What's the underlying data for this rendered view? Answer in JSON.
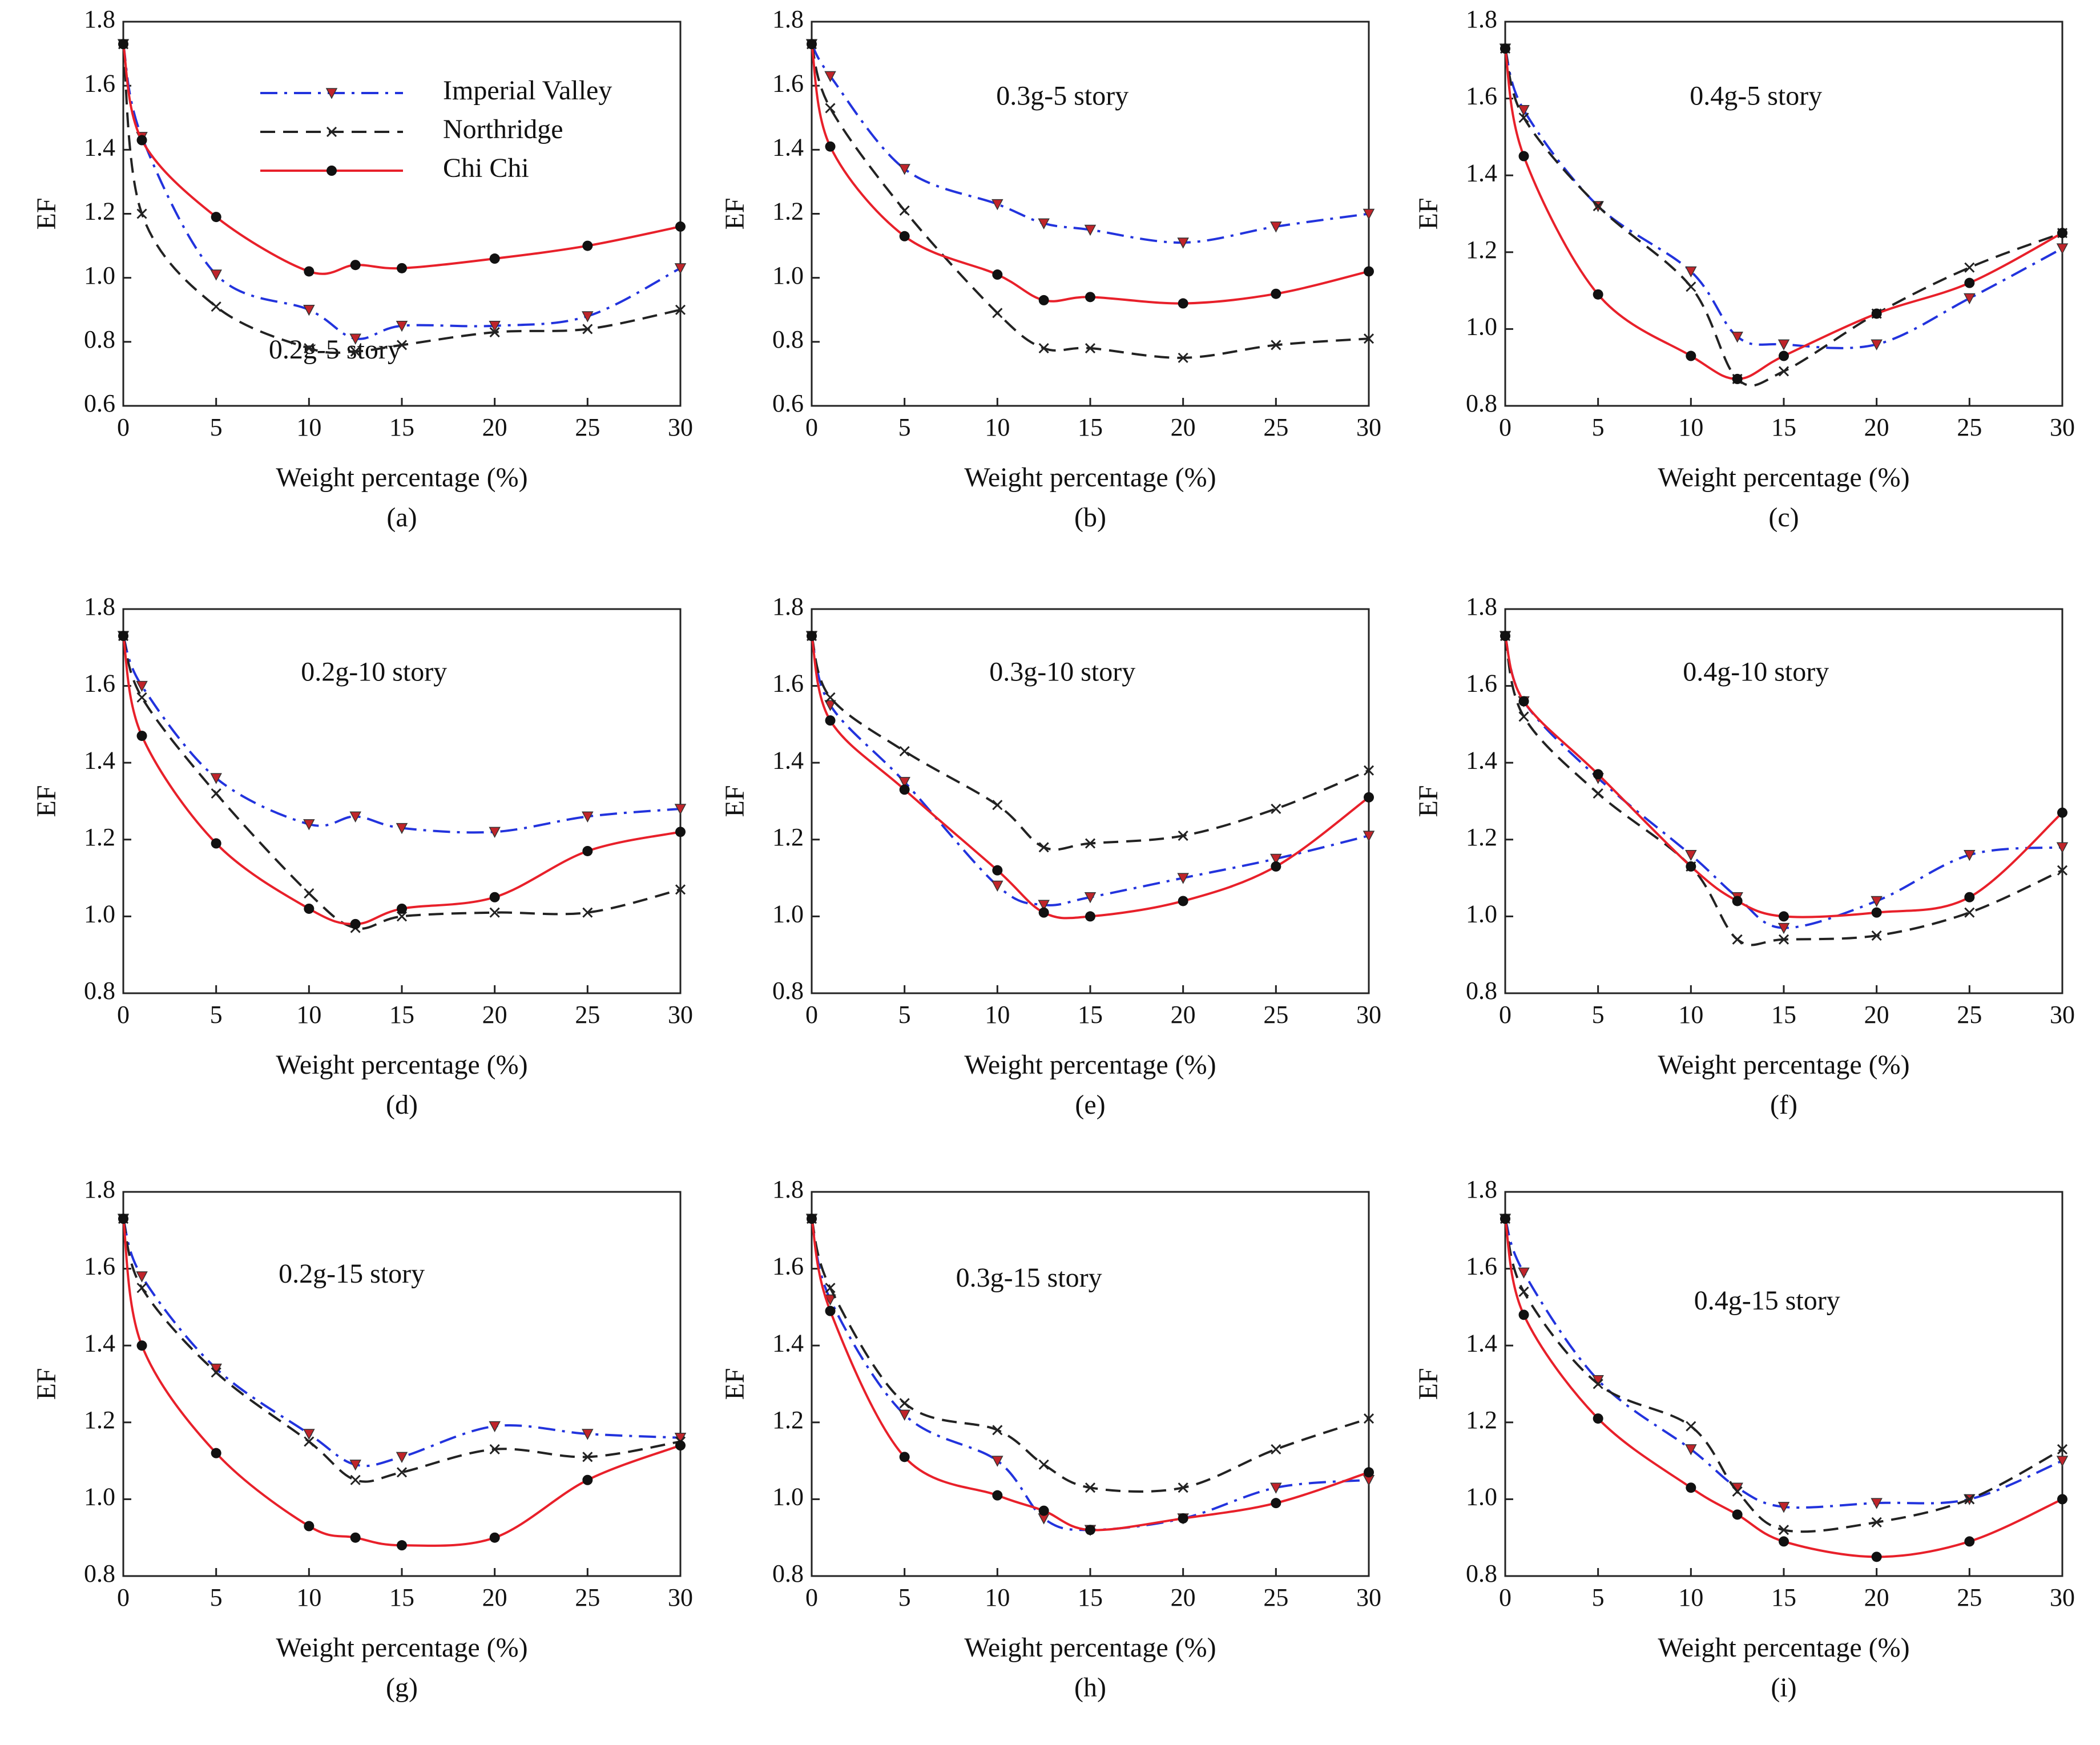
{
  "chart_data": [
    {
      "type": "line",
      "title": "0.2g-5 story",
      "caption": "(a)",
      "xlabel": "Weight percentage (%)",
      "ylabel": "EF",
      "x": [
        0,
        1,
        5,
        10,
        12.5,
        15,
        20,
        25,
        30
      ],
      "xlim": [
        0,
        30
      ],
      "xticks": [
        0,
        5,
        10,
        15,
        20,
        25,
        30
      ],
      "ylim": [
        0.6,
        1.8
      ],
      "yticks": [
        0.6,
        0.8,
        {
          "value": 1,
          "label": "1.0"
        },
        1.2,
        1.4,
        1.6,
        1.8
      ],
      "legend": "upper left",
      "series": [
        {
          "name": "Imperial Valley",
          "color": "#2233dd",
          "dash": "dash-dot",
          "marker": "triangle-down",
          "values": [
            1.73,
            1.44,
            1.01,
            0.9,
            0.81,
            0.85,
            0.85,
            0.88,
            1.03
          ]
        },
        {
          "name": "Northridge",
          "color": "#222222",
          "dash": "dashed",
          "marker": "x",
          "values": [
            1.73,
            1.2,
            0.91,
            0.78,
            0.77,
            0.79,
            0.83,
            0.84,
            0.9
          ]
        },
        {
          "name": "Chi Chi",
          "color": "#e8202a",
          "dash": "solid",
          "marker": "circle",
          "values": [
            1.73,
            1.43,
            1.19,
            1.02,
            1.04,
            1.03,
            1.06,
            1.1,
            1.16
          ]
        }
      ]
    },
    {
      "type": "line",
      "title": "0.3g-5 story",
      "caption": "(b)",
      "xlabel": "Weight percentage (%)",
      "ylabel": "EF",
      "x": [
        0,
        1,
        5,
        10,
        12.5,
        15,
        20,
        25,
        30
      ],
      "xlim": [
        0,
        30
      ],
      "xticks": [
        0,
        5,
        10,
        15,
        20,
        25,
        30
      ],
      "ylim": [
        0.6,
        1.8
      ],
      "yticks": [
        0.6,
        0.8,
        {
          "value": 1,
          "label": "1.0"
        },
        1.2,
        1.4,
        1.6,
        1.8
      ],
      "series": [
        {
          "color": "#2233dd",
          "dash": "dash-dot",
          "marker": "triangle-down",
          "values": [
            1.73,
            1.63,
            1.34,
            1.23,
            1.17,
            1.15,
            1.11,
            1.16,
            1.2
          ]
        },
        {
          "color": "#222222",
          "dash": "dashed",
          "marker": "x",
          "values": [
            1.73,
            1.53,
            1.21,
            0.89,
            0.78,
            0.78,
            0.75,
            0.79,
            0.81
          ]
        },
        {
          "color": "#e8202a",
          "dash": "solid",
          "marker": "circle",
          "values": [
            1.73,
            1.41,
            1.13,
            1.01,
            0.93,
            0.94,
            0.92,
            0.95,
            1.02
          ]
        }
      ]
    },
    {
      "type": "line",
      "title": "0.4g-5 story",
      "caption": "(c)",
      "xlabel": "Weight percentage (%)",
      "ylabel": "EF",
      "x": [
        0,
        1,
        5,
        10,
        12.5,
        15,
        20,
        25,
        30
      ],
      "xlim": [
        0,
        30
      ],
      "xticks": [
        0,
        5,
        10,
        15,
        20,
        25,
        30
      ],
      "ylim": [
        0.8,
        1.8
      ],
      "yticks": [
        0.8,
        {
          "value": 1,
          "label": "1.0"
        },
        1.2,
        1.4,
        1.6,
        1.8
      ],
      "series": [
        {
          "color": "#2233dd",
          "dash": "dash-dot",
          "marker": "triangle-down",
          "values": [
            1.73,
            1.57,
            1.32,
            1.15,
            0.98,
            0.96,
            0.96,
            1.08,
            1.21
          ]
        },
        {
          "color": "#222222",
          "dash": "dashed",
          "marker": "x",
          "values": [
            1.73,
            1.55,
            1.32,
            1.11,
            0.87,
            0.89,
            1.04,
            1.16,
            1.25
          ]
        },
        {
          "color": "#e8202a",
          "dash": "solid",
          "marker": "circle",
          "values": [
            1.73,
            1.45,
            1.09,
            0.93,
            0.87,
            0.93,
            1.04,
            1.12,
            1.25
          ]
        }
      ]
    },
    {
      "type": "line",
      "title": "0.2g-10 story",
      "caption": "(d)",
      "xlabel": "Weight percentage (%)",
      "ylabel": "EF",
      "x": [
        0,
        1,
        5,
        10,
        12.5,
        15,
        20,
        25,
        30
      ],
      "xlim": [
        0,
        30
      ],
      "xticks": [
        0,
        5,
        10,
        15,
        20,
        25,
        30
      ],
      "ylim": [
        0.8,
        1.8
      ],
      "yticks": [
        0.8,
        {
          "value": 1,
          "label": "1.0"
        },
        1.2,
        1.4,
        1.6,
        1.8
      ],
      "series": [
        {
          "color": "#2233dd",
          "dash": "dash-dot",
          "marker": "triangle-down",
          "values": [
            1.73,
            1.6,
            1.36,
            1.24,
            1.26,
            1.23,
            1.22,
            1.26,
            1.28
          ]
        },
        {
          "color": "#222222",
          "dash": "dashed",
          "marker": "x",
          "values": [
            1.73,
            1.57,
            1.32,
            1.06,
            0.97,
            1.0,
            1.01,
            1.01,
            1.07
          ]
        },
        {
          "color": "#e8202a",
          "dash": "solid",
          "marker": "circle",
          "values": [
            1.73,
            1.47,
            1.19,
            1.02,
            0.98,
            1.02,
            1.05,
            1.17,
            1.22
          ]
        }
      ]
    },
    {
      "type": "line",
      "title": "0.3g-10 story",
      "caption": "(e)",
      "xlabel": "Weight percentage (%)",
      "ylabel": "EF",
      "x": [
        0,
        1,
        5,
        10,
        12.5,
        15,
        20,
        25,
        30
      ],
      "xlim": [
        0,
        30
      ],
      "xticks": [
        0,
        5,
        10,
        15,
        20,
        25,
        30
      ],
      "ylim": [
        0.8,
        1.8
      ],
      "yticks": [
        0.8,
        {
          "value": 1,
          "label": "1.0"
        },
        1.2,
        1.4,
        1.6,
        1.8
      ],
      "series": [
        {
          "color": "#2233dd",
          "dash": "dash-dot",
          "marker": "triangle-down",
          "values": [
            1.73,
            1.55,
            1.35,
            1.08,
            1.03,
            1.05,
            1.1,
            1.15,
            1.21
          ]
        },
        {
          "color": "#222222",
          "dash": "dashed",
          "marker": "x",
          "values": [
            1.73,
            1.57,
            1.43,
            1.29,
            1.18,
            1.19,
            1.21,
            1.28,
            1.38
          ]
        },
        {
          "color": "#e8202a",
          "dash": "solid",
          "marker": "circle",
          "values": [
            1.73,
            1.51,
            1.33,
            1.12,
            1.01,
            1.0,
            1.04,
            1.13,
            1.31
          ]
        }
      ]
    },
    {
      "type": "line",
      "title": "0.4g-10 story",
      "caption": "(f)",
      "xlabel": "Weight percentage (%)",
      "ylabel": "EF",
      "x": [
        0,
        1,
        5,
        10,
        12.5,
        15,
        20,
        25,
        30
      ],
      "xlim": [
        0,
        30
      ],
      "xticks": [
        0,
        5,
        10,
        15,
        20,
        25,
        30
      ],
      "ylim": [
        0.8,
        1.8
      ],
      "yticks": [
        0.8,
        {
          "value": 1,
          "label": "1.0"
        },
        1.2,
        1.4,
        1.6,
        1.8
      ],
      "series": [
        {
          "color": "#2233dd",
          "dash": "dash-dot",
          "marker": "triangle-down",
          "values": [
            1.73,
            1.56,
            1.36,
            1.16,
            1.05,
            0.97,
            1.04,
            1.16,
            1.18
          ]
        },
        {
          "color": "#222222",
          "dash": "dashed",
          "marker": "x",
          "values": [
            1.73,
            1.52,
            1.32,
            1.13,
            0.94,
            0.94,
            0.95,
            1.01,
            1.12
          ]
        },
        {
          "color": "#e8202a",
          "dash": "solid",
          "marker": "circle",
          "values": [
            1.73,
            1.56,
            1.37,
            1.13,
            1.04,
            1.0,
            1.01,
            1.05,
            1.27
          ]
        }
      ]
    },
    {
      "type": "line",
      "title": "0.2g-15 story",
      "caption": "(g)",
      "xlabel": "Weight percentage (%)",
      "ylabel": "EF",
      "x": [
        0,
        1,
        5,
        10,
        12.5,
        15,
        20,
        25,
        30
      ],
      "xlim": [
        0,
        30
      ],
      "xticks": [
        0,
        5,
        10,
        15,
        20,
        25,
        30
      ],
      "ylim": [
        0.8,
        1.8
      ],
      "yticks": [
        0.8,
        {
          "value": 1,
          "label": "1.0"
        },
        1.2,
        1.4,
        1.6,
        1.8
      ],
      "series": [
        {
          "color": "#2233dd",
          "dash": "dash-dot",
          "marker": "triangle-down",
          "values": [
            1.73,
            1.58,
            1.34,
            1.17,
            1.09,
            1.11,
            1.19,
            1.17,
            1.16
          ]
        },
        {
          "color": "#222222",
          "dash": "dashed",
          "marker": "x",
          "values": [
            1.73,
            1.55,
            1.33,
            1.15,
            1.05,
            1.07,
            1.13,
            1.11,
            1.15
          ]
        },
        {
          "color": "#e8202a",
          "dash": "solid",
          "marker": "circle",
          "values": [
            1.73,
            1.4,
            1.12,
            0.93,
            0.9,
            0.88,
            0.9,
            1.05,
            1.14
          ]
        }
      ]
    },
    {
      "type": "line",
      "title": "0.3g-15 story",
      "caption": "(h)",
      "xlabel": "Weight percentage (%)",
      "ylabel": "EF",
      "x": [
        0,
        1,
        5,
        10,
        12.5,
        15,
        20,
        25,
        30
      ],
      "xlim": [
        0,
        30
      ],
      "xticks": [
        0,
        5,
        10,
        15,
        20,
        25,
        30
      ],
      "ylim": [
        0.8,
        1.8
      ],
      "yticks": [
        0.8,
        {
          "value": 1,
          "label": "1.0"
        },
        1.2,
        1.4,
        1.6,
        1.8
      ],
      "series": [
        {
          "color": "#2233dd",
          "dash": "dash-dot",
          "marker": "triangle-down",
          "values": [
            1.73,
            1.52,
            1.22,
            1.1,
            0.95,
            0.92,
            0.95,
            1.03,
            1.05
          ]
        },
        {
          "color": "#222222",
          "dash": "dashed",
          "marker": "x",
          "values": [
            1.73,
            1.55,
            1.25,
            1.18,
            1.09,
            1.03,
            1.03,
            1.13,
            1.21
          ]
        },
        {
          "color": "#e8202a",
          "dash": "solid",
          "marker": "circle",
          "values": [
            1.73,
            1.49,
            1.11,
            1.01,
            0.97,
            0.92,
            0.95,
            0.99,
            1.07
          ]
        }
      ]
    },
    {
      "type": "line",
      "title": "0.4g-15 story",
      "caption": "(i)",
      "xlabel": "Weight percentage (%)",
      "ylabel": "EF",
      "x": [
        0,
        1,
        5,
        10,
        12.5,
        15,
        20,
        25,
        30
      ],
      "xlim": [
        0,
        30
      ],
      "xticks": [
        0,
        5,
        10,
        15,
        20,
        25,
        30
      ],
      "ylim": [
        0.8,
        1.8
      ],
      "yticks": [
        0.8,
        {
          "value": 1,
          "label": "1.0"
        },
        1.2,
        1.4,
        1.6,
        1.8
      ],
      "series": [
        {
          "color": "#2233dd",
          "dash": "dash-dot",
          "marker": "triangle-down",
          "values": [
            1.73,
            1.59,
            1.31,
            1.13,
            1.03,
            0.98,
            0.99,
            1.0,
            1.1
          ]
        },
        {
          "color": "#222222",
          "dash": "dashed",
          "marker": "x",
          "values": [
            1.73,
            1.54,
            1.3,
            1.19,
            1.02,
            0.92,
            0.94,
            1.0,
            1.13
          ]
        },
        {
          "color": "#e8202a",
          "dash": "solid",
          "marker": "circle",
          "values": [
            1.73,
            1.48,
            1.21,
            1.03,
            0.96,
            0.89,
            0.85,
            0.89,
            1.0
          ]
        }
      ]
    }
  ]
}
